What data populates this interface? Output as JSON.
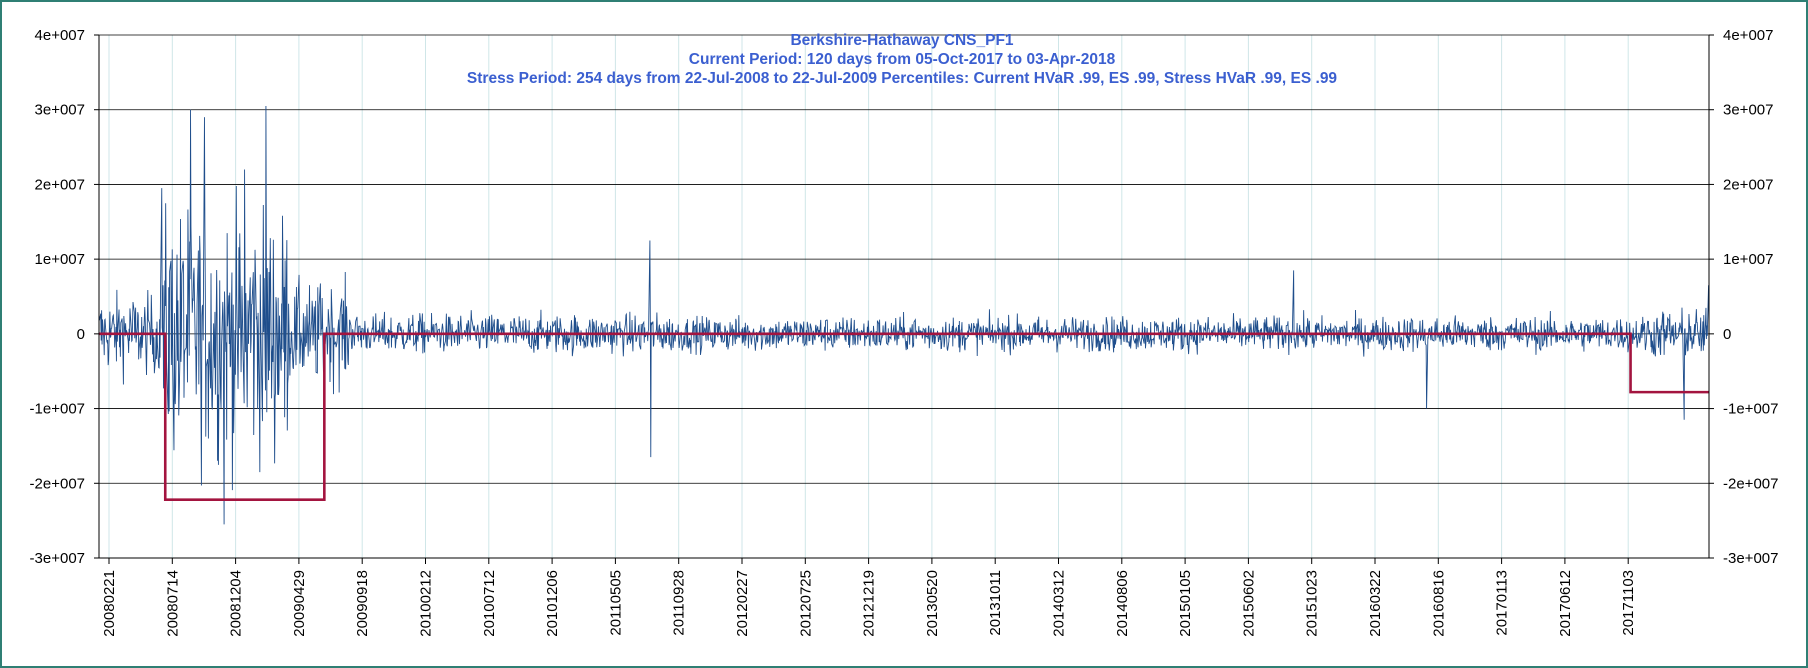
{
  "chart_data": {
    "type": "line",
    "title": "Berkshire-Hathaway CNS_PF1",
    "subtitle_lines": [
      "Current Period: 120 days from 05-Oct-2017 to 03-Apr-2018",
      "Stress Period: 254 days from 22-Jul-2008 to 22-Jul-2009  Percentiles:  Current HVaR .99,   ES .99,    Stress HVaR .99,    ES .99"
    ],
    "xlabel": "",
    "ylabel": "",
    "ylim": [
      -30000000,
      40000000
    ],
    "y_ticks": [
      {
        "value": 40000000,
        "label": "4e+007"
      },
      {
        "value": 30000000,
        "label": "3e+007"
      },
      {
        "value": 20000000,
        "label": "2e+007"
      },
      {
        "value": 10000000,
        "label": "1e+007"
      },
      {
        "value": 0,
        "label": "0"
      },
      {
        "value": -10000000,
        "label": "-1e+007"
      },
      {
        "value": -20000000,
        "label": "-2e+007"
      },
      {
        "value": -30000000,
        "label": "-3e+007"
      }
    ],
    "x_range": [
      "20080221",
      "20180403"
    ],
    "x_tick_labels": [
      "20080221",
      "20080714",
      "20081204",
      "20090429",
      "20090918",
      "20100212",
      "20100712",
      "20101206",
      "20110505",
      "20110928",
      "20120227",
      "20120725",
      "20121219",
      "20130520",
      "20131011",
      "20140312",
      "20140806",
      "20150105",
      "20150602",
      "20151023",
      "20160322",
      "20160816",
      "20170113",
      "20170612",
      "20171103"
    ],
    "grid": true,
    "legend": "none",
    "series": [
      {
        "kind": "daily_pnl",
        "color": "#1f4e8c",
        "approx_envelope": [
          {
            "from": "20080221",
            "to": "20080714",
            "amplitude": 8000000
          },
          {
            "from": "20080714",
            "to": "20090429",
            "amplitude": 25000000
          },
          {
            "from": "20090429",
            "to": "20090918",
            "amplitude": 10000000
          },
          {
            "from": "20090918",
            "to": "20110928",
            "amplitude": 4000000
          },
          {
            "from": "20110928",
            "to": "20171103",
            "amplitude": 3500000
          },
          {
            "from": "20171103",
            "to": "20180403",
            "amplitude": 5000000
          }
        ],
        "notable_points": [
          {
            "x": "20080714",
            "y": 19500000
          },
          {
            "x": "20080918",
            "y": 30000000
          },
          {
            "x": "20081020",
            "y": 29000000
          },
          {
            "x": "20081204",
            "y": -25500000
          },
          {
            "x": "20090120",
            "y": 22000000
          },
          {
            "x": "20090310",
            "y": 30500000
          },
          {
            "x": "20110808",
            "y": 12500000
          },
          {
            "x": "20110810",
            "y": -16500000
          },
          {
            "x": "20150824",
            "y": 8500000
          },
          {
            "x": "20160624",
            "y": -10000000
          },
          {
            "x": "20180205",
            "y": -11500000
          },
          {
            "x": "20180402",
            "y": 6500000
          }
        ]
      },
      {
        "kind": "stress_var_level",
        "color": "#a3143f",
        "segments": [
          {
            "from": "20080221",
            "to": "20080722",
            "y": 0
          },
          {
            "from": "20080722",
            "to": "20090722",
            "y": -22200000
          },
          {
            "from": "20090722",
            "to": "20171005",
            "y": 0
          },
          {
            "from": "20171005",
            "to": "20180403",
            "y": -7800000
          }
        ]
      }
    ]
  }
}
